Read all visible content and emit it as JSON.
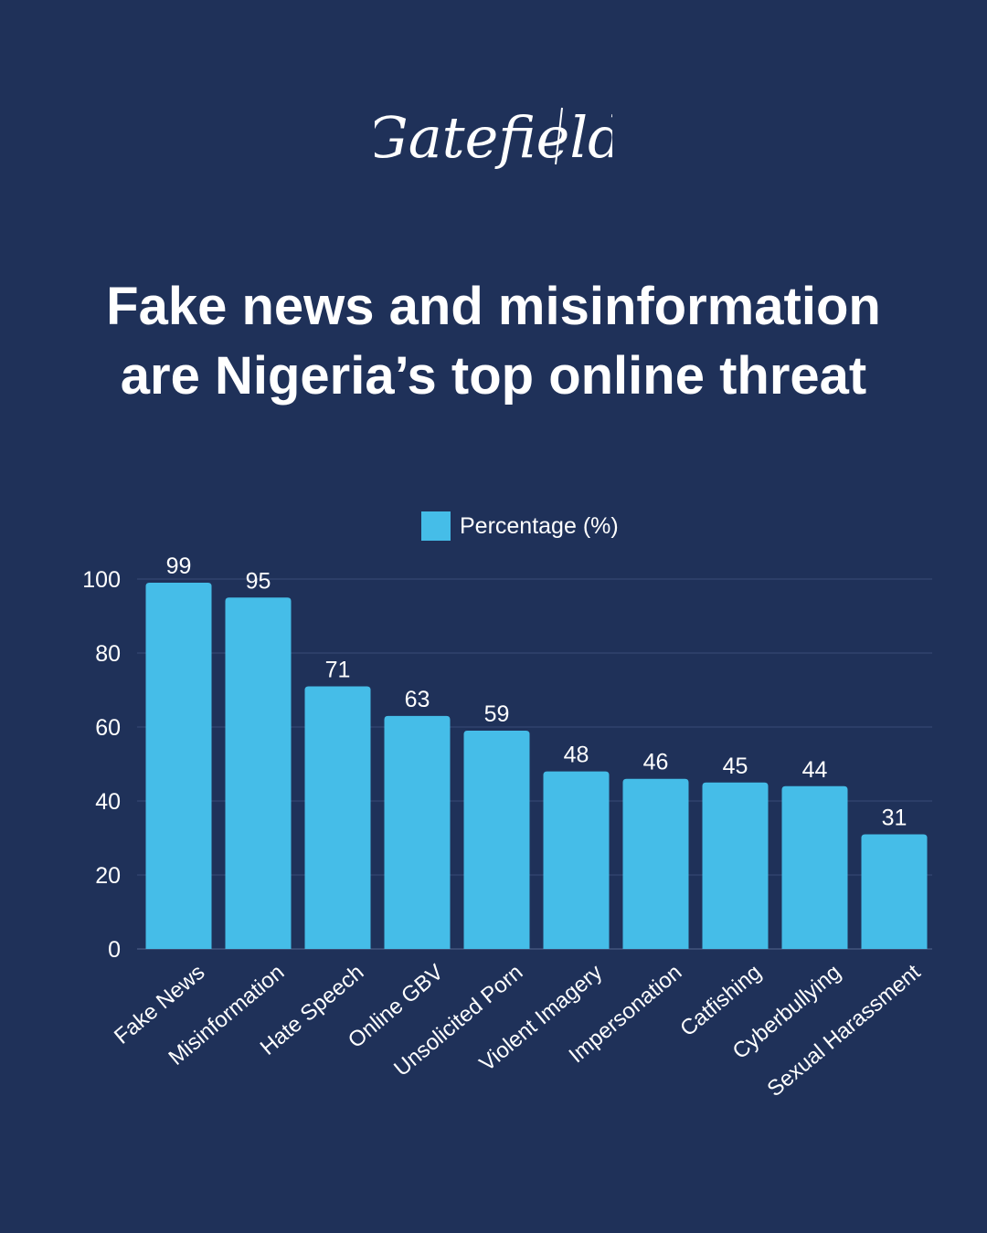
{
  "brand": {
    "logo_text": "Gatefield"
  },
  "header": {
    "title_line1": "Fake news and misinformation",
    "title_line2": "are Nigeria’s top online threat"
  },
  "colors": {
    "background": "#1f3159",
    "bar": "#45bde8",
    "grid": "#3a4c78",
    "text": "#ffffff"
  },
  "chart_data": {
    "type": "bar",
    "title": "",
    "xlabel": "",
    "ylabel": "",
    "legend": "top-center",
    "grid": true,
    "ylim": [
      0,
      100
    ],
    "yticks": [
      0,
      20,
      40,
      60,
      80,
      100
    ],
    "categories": [
      "Fake News",
      "Misinformation",
      "Hate Speech",
      "Online GBV",
      "Unsolicited Porn",
      "Violent Imagery",
      "Impersonation",
      "Catfishing",
      "Cyberbullying",
      "Sexual Harassment"
    ],
    "series": [
      {
        "name": "Percentage (%)",
        "values": [
          99,
          95,
          71,
          63,
          59,
          48,
          46,
          45,
          44,
          31
        ]
      }
    ]
  }
}
